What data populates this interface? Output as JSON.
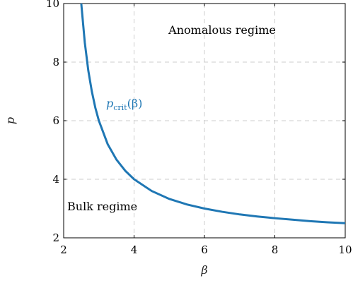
{
  "chart_data": {
    "type": "line",
    "title": "",
    "xlabel": "β",
    "ylabel": "p",
    "xlim": [
      2,
      10
    ],
    "ylim": [
      2,
      10
    ],
    "xticks": [
      "2",
      "4",
      "6",
      "8",
      "10"
    ],
    "yticks": [
      "2",
      "4",
      "6",
      "8",
      "10"
    ],
    "grid": true,
    "series": [
      {
        "name": "p_crit(β)",
        "color": "#1f77b4",
        "formula_hint": "p = 2β/(β-2)",
        "x": [
          2.5,
          2.6,
          2.7,
          2.8,
          2.9,
          3.0,
          3.25,
          3.5,
          3.75,
          4.0,
          4.5,
          5.0,
          5.5,
          6.0,
          6.5,
          7.0,
          7.5,
          8.0,
          8.5,
          9.0,
          9.5,
          10.0
        ],
        "y": [
          10.0,
          8.67,
          7.71,
          7.0,
          6.44,
          6.0,
          5.2,
          4.67,
          4.29,
          4.0,
          3.6,
          3.33,
          3.14,
          3.0,
          2.89,
          2.8,
          2.73,
          2.67,
          2.62,
          2.57,
          2.53,
          2.5
        ]
      }
    ],
    "annotations": {
      "anomalous": "Anomalous regime",
      "bulk": "Bulk regime",
      "curve_label_base": "p",
      "curve_label_sub": "crit",
      "curve_label_arg": "(β)"
    }
  }
}
